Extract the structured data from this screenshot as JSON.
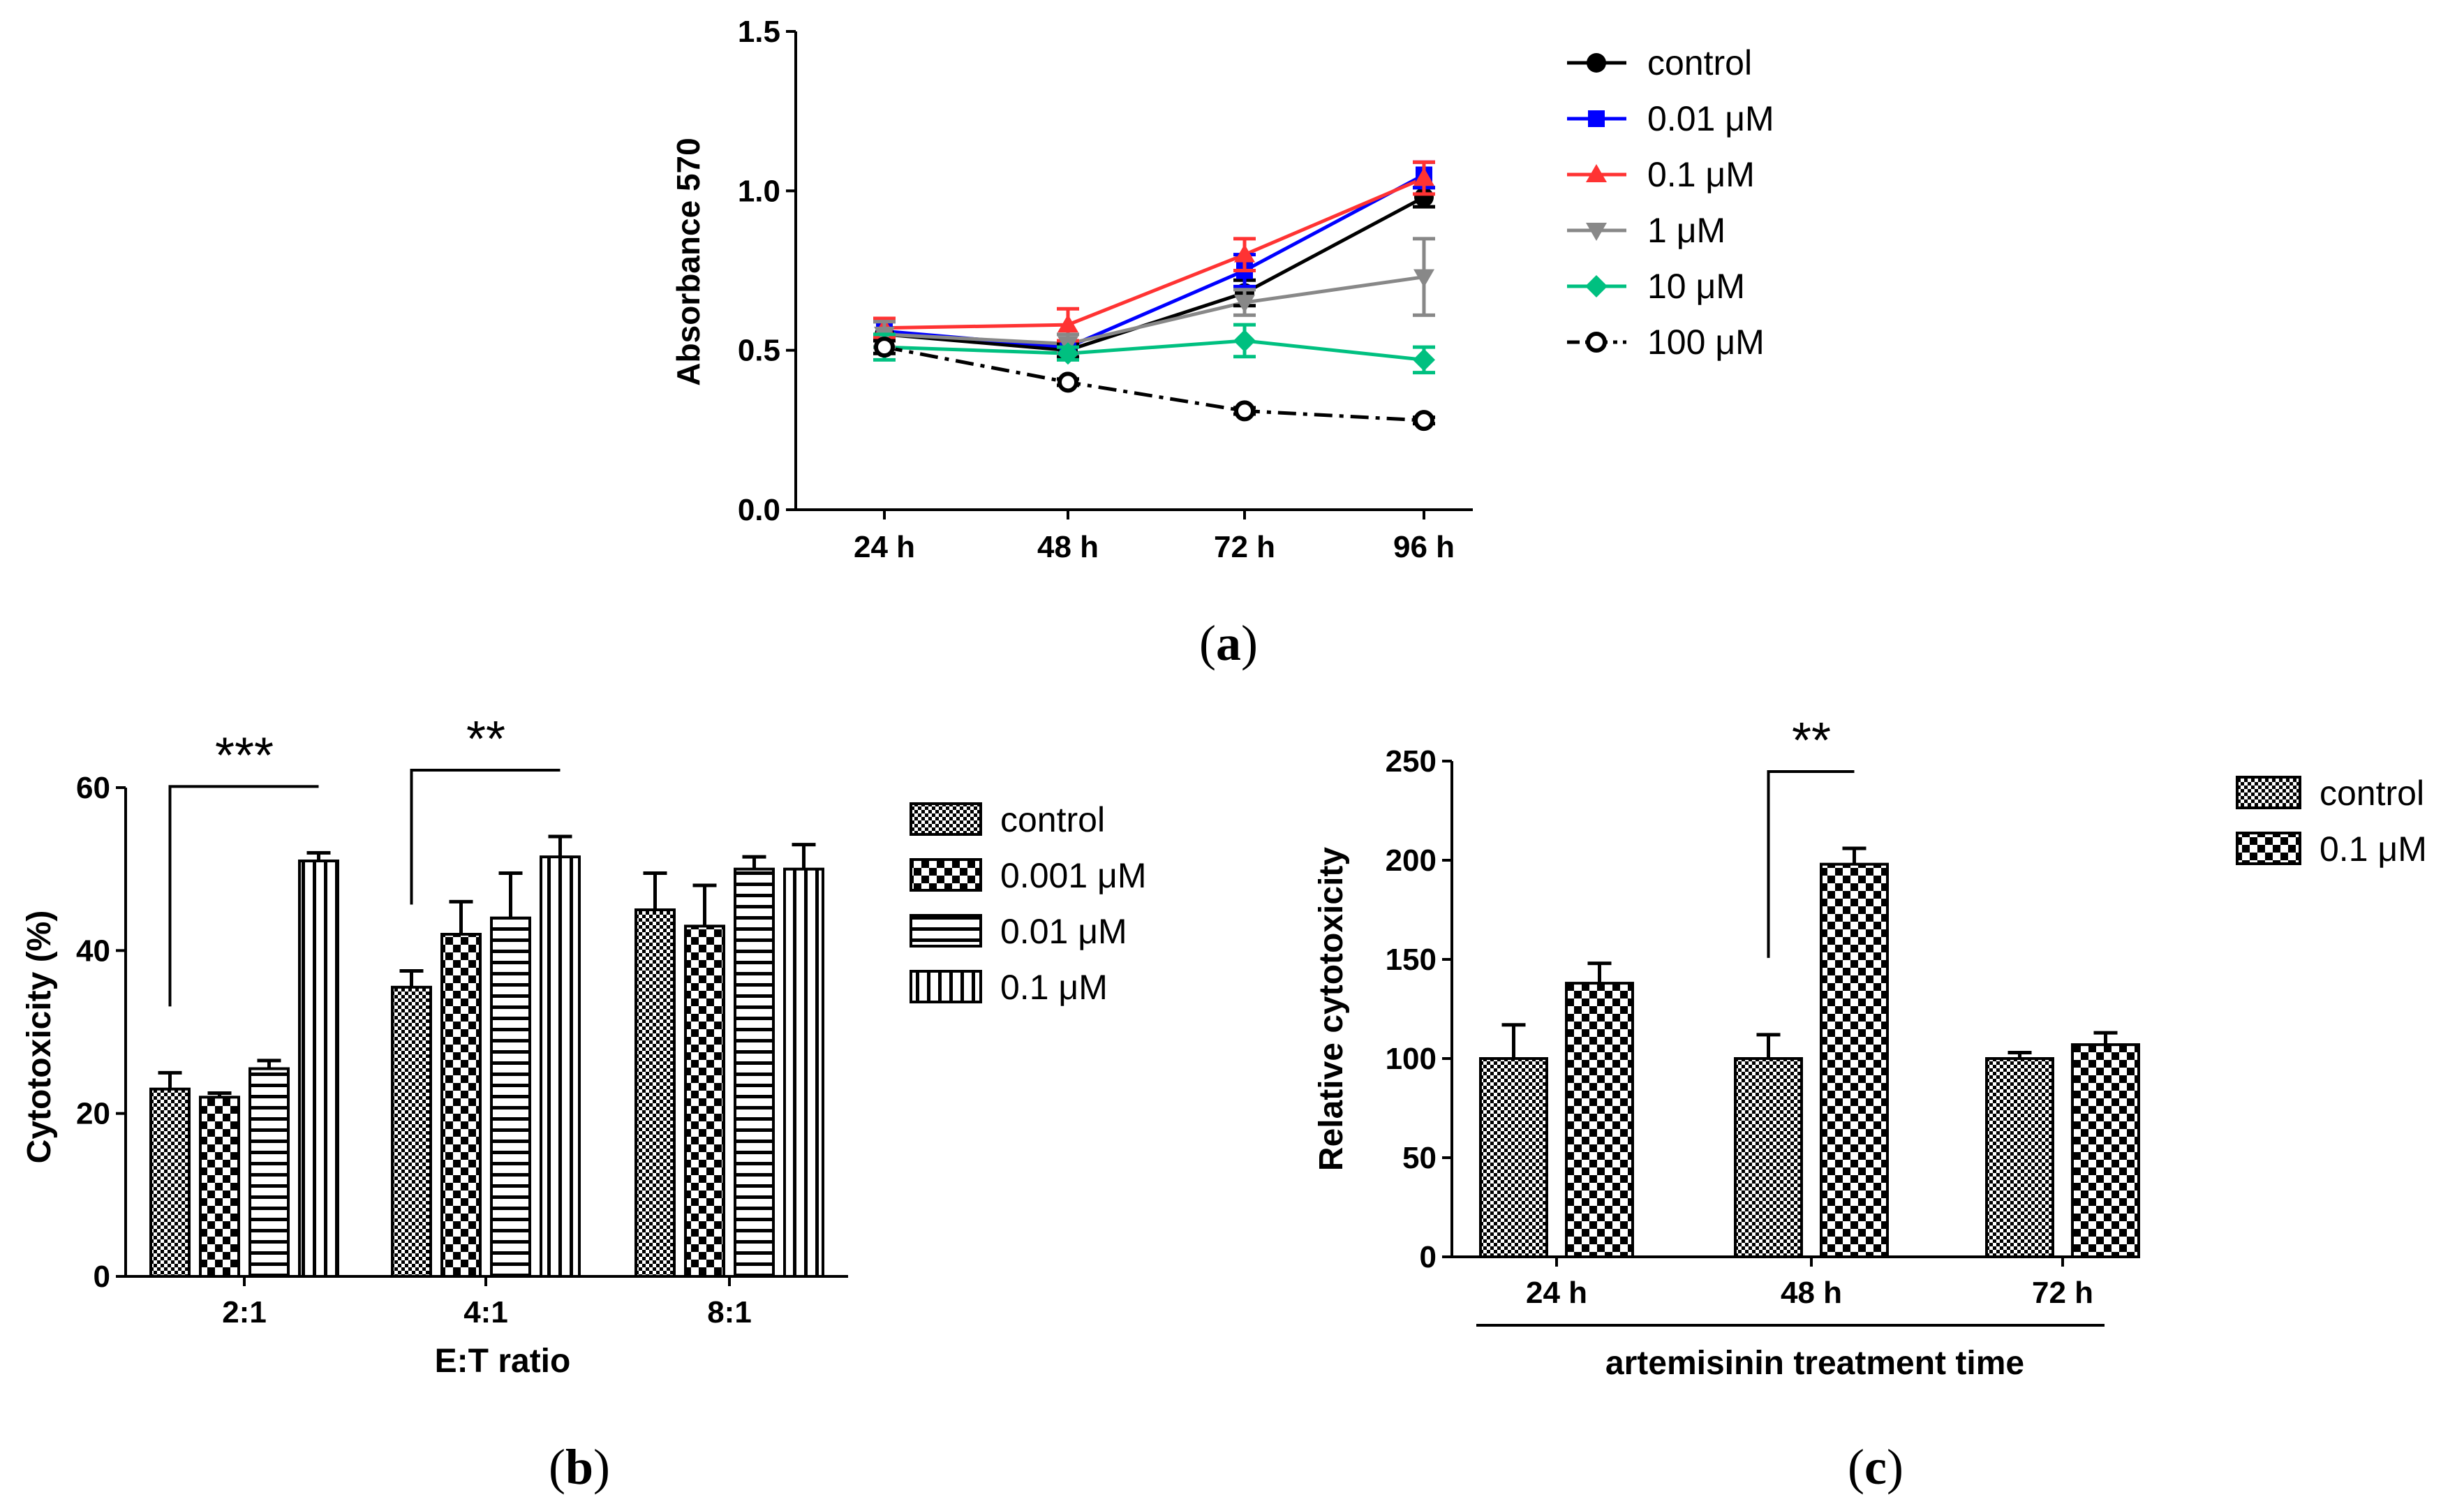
{
  "colors": {
    "control": "#000000",
    "c001": "#0000ff",
    "c01": "#ff3333",
    "c1": "#888888",
    "c10": "#00c080",
    "c100": "#000000"
  },
  "chart_data": [
    {
      "id": "a",
      "type": "line",
      "panel_label": "(a)",
      "panel_letter": "a",
      "ylabel": "Absorbance 570",
      "xlabel": "",
      "categories": [
        "24 h",
        "48 h",
        "72 h",
        "96 h"
      ],
      "ylim": [
        0,
        1.5
      ],
      "yticks": [
        "0.0",
        "0.5",
        "1.0",
        "1.5"
      ],
      "ytick_values": [
        0,
        0.5,
        1.0,
        1.5
      ],
      "series": [
        {
          "name": "control",
          "color": "#000000",
          "marker": "circle",
          "dash": false,
          "values": [
            0.55,
            0.5,
            0.68,
            0.98
          ],
          "errors": [
            0.04,
            0.02,
            0.04,
            0.03
          ]
        },
        {
          "name": "0.01 μM",
          "color": "#0000ff",
          "marker": "square",
          "dash": false,
          "values": [
            0.56,
            0.51,
            0.75,
            1.05
          ],
          "errors": [
            0.03,
            0.02,
            0.05,
            0.04
          ]
        },
        {
          "name": "0.1 μM",
          "color": "#ff3333",
          "marker": "triangle",
          "dash": false,
          "values": [
            0.57,
            0.58,
            0.8,
            1.04
          ],
          "errors": [
            0.03,
            0.05,
            0.05,
            0.05
          ]
        },
        {
          "name": "1 μM",
          "color": "#888888",
          "marker": "triangle-down",
          "dash": false,
          "values": [
            0.55,
            0.52,
            0.65,
            0.73
          ],
          "errors": [
            0.04,
            0.03,
            0.04,
            0.12
          ]
        },
        {
          "name": "10 μM",
          "color": "#00c080",
          "marker": "diamond",
          "dash": false,
          "values": [
            0.51,
            0.49,
            0.53,
            0.47
          ],
          "errors": [
            0.04,
            0.02,
            0.05,
            0.04
          ]
        },
        {
          "name": "100 μM",
          "color": "#000000",
          "marker": "open-circle",
          "dash": true,
          "values": [
            0.51,
            0.4,
            0.31,
            0.28
          ],
          "errors": [
            0.02,
            0.01,
            0.01,
            0.01
          ]
        }
      ]
    },
    {
      "id": "b",
      "type": "bar",
      "panel_label": "(b)",
      "panel_letter": "b",
      "ylabel": "Cytotoxicity (%)",
      "xlabel": "E:T ratio",
      "categories": [
        "2:1",
        "4:1",
        "8:1"
      ],
      "ylim": [
        0,
        60
      ],
      "yticks": [
        "0",
        "20",
        "40",
        "60"
      ],
      "ytick_values": [
        0,
        20,
        40,
        60
      ],
      "series": [
        {
          "name": "control",
          "pattern": "fine-check",
          "values": [
            23,
            35.5,
            45
          ],
          "errors": [
            2,
            2,
            4.5
          ]
        },
        {
          "name": "0.001 μM",
          "pattern": "coarse-check",
          "values": [
            22,
            42,
            43
          ],
          "errors": [
            0.5,
            4,
            5
          ]
        },
        {
          "name": "0.01 μM",
          "pattern": "h-stripes",
          "values": [
            25.5,
            44,
            50
          ],
          "errors": [
            1,
            5.5,
            1.5
          ]
        },
        {
          "name": "0.1 μM",
          "pattern": "v-stripes",
          "values": [
            51,
            51.5,
            50
          ],
          "errors": [
            1,
            2.5,
            3
          ]
        }
      ],
      "significance": [
        {
          "label": "***",
          "category": 0,
          "from_series": 0,
          "to_series": 3
        },
        {
          "label": "**",
          "category": 1,
          "from_series": 0,
          "to_series": 3
        }
      ]
    },
    {
      "id": "c",
      "type": "bar",
      "panel_label": "(c)",
      "panel_letter": "c",
      "ylabel": "Relative cytotoxicity",
      "xlabel": "artemisinin treatment time",
      "categories": [
        "24 h",
        "48 h",
        "72 h"
      ],
      "ylim": [
        0,
        250
      ],
      "yticks": [
        "0",
        "50",
        "100",
        "150",
        "200",
        "250"
      ],
      "ytick_values": [
        0,
        50,
        100,
        150,
        200,
        250
      ],
      "series": [
        {
          "name": "control",
          "pattern": "fine-check",
          "values": [
            100,
            100,
            100
          ],
          "errors": [
            17,
            12,
            3
          ]
        },
        {
          "name": "0.1 μM",
          "pattern": "coarse-check",
          "values": [
            138,
            198,
            107
          ],
          "errors": [
            10,
            8,
            6
          ]
        }
      ],
      "significance": [
        {
          "label": "**",
          "category": 1,
          "from_series": 0,
          "to_series": 1
        }
      ]
    }
  ]
}
